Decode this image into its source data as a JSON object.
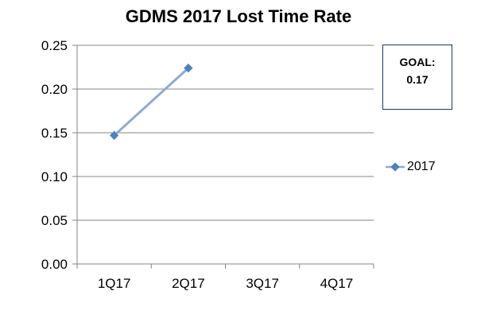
{
  "chart_data": {
    "type": "line",
    "title": "GDMS 2017 Lost Time Rate",
    "categories": [
      "1Q17",
      "2Q17",
      "3Q17",
      "4Q17"
    ],
    "series": [
      {
        "name": "2017",
        "values": [
          0.147,
          0.224,
          null,
          null
        ],
        "color": "#4f81bd"
      }
    ],
    "ylim": [
      0,
      0.25
    ],
    "yticks": [
      "0.00",
      "0.05",
      "0.10",
      "0.15",
      "0.20",
      "0.25"
    ],
    "grid": true,
    "legend": "right",
    "annotation": {
      "label": "GOAL:",
      "value": "0.17"
    }
  }
}
